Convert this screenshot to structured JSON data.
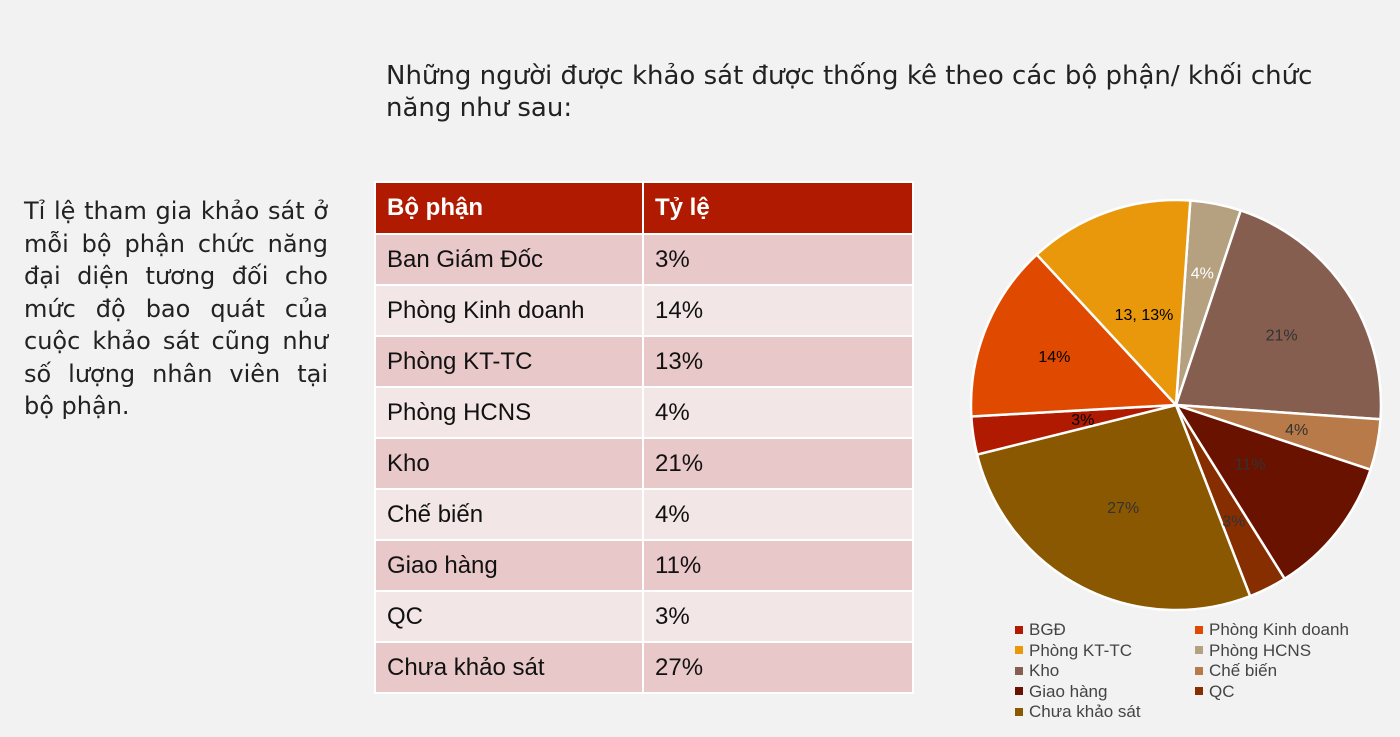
{
  "heading": "Những người được khảo sát được thống kê theo các bộ phận/ khối chức năng như sau:",
  "side_text": "Tỉ lệ tham gia khảo sát ở  mỗi bộ phận chức năng  đại diện tương đối cho mức độ bao quát của cuộc khảo sát cũng như số lượng nhân viên tại bộ phận.",
  "table": {
    "headers": [
      "Bộ phận",
      "Tỷ lệ"
    ],
    "rows": [
      [
        "Ban Giám Đốc",
        "3%"
      ],
      [
        "Phòng Kinh doanh",
        "14%"
      ],
      [
        "Phòng KT-TC",
        "13%"
      ],
      [
        "Phòng HCNS",
        "4%"
      ],
      [
        "Kho",
        "21%"
      ],
      [
        "Chế biến",
        "4%"
      ],
      [
        "Giao hàng",
        "11%"
      ],
      [
        "QC",
        "3%"
      ],
      [
        "Chưa khảo sát",
        "27%"
      ]
    ]
  },
  "chart_data": {
    "type": "pie",
    "categories": [
      "BGĐ",
      "Phòng Kinh doanh",
      "Phòng KT-TC",
      "Phòng HCNS",
      "Kho",
      "Chế biến",
      "Giao hàng",
      "QC",
      "Chưa khảo sát"
    ],
    "values": [
      3,
      14,
      13,
      4,
      21,
      4,
      11,
      3,
      27
    ],
    "data_labels": [
      "3%",
      "14%",
      "13, 13%",
      "4%",
      "21%",
      "4%",
      "11%",
      "3%",
      "27%"
    ],
    "colors": [
      "#b01a00",
      "#e04a00",
      "#e8980a",
      "#b5a080",
      "#855e50",
      "#b87a48",
      "#6a1200",
      "#862e00",
      "#8a5800"
    ],
    "label_colors": [
      "#000000",
      "#000000",
      "#000000",
      "#ffffff",
      "#333333",
      "#333333",
      "#333333",
      "#333333",
      "#333333"
    ],
    "legend_position": "bottom"
  }
}
